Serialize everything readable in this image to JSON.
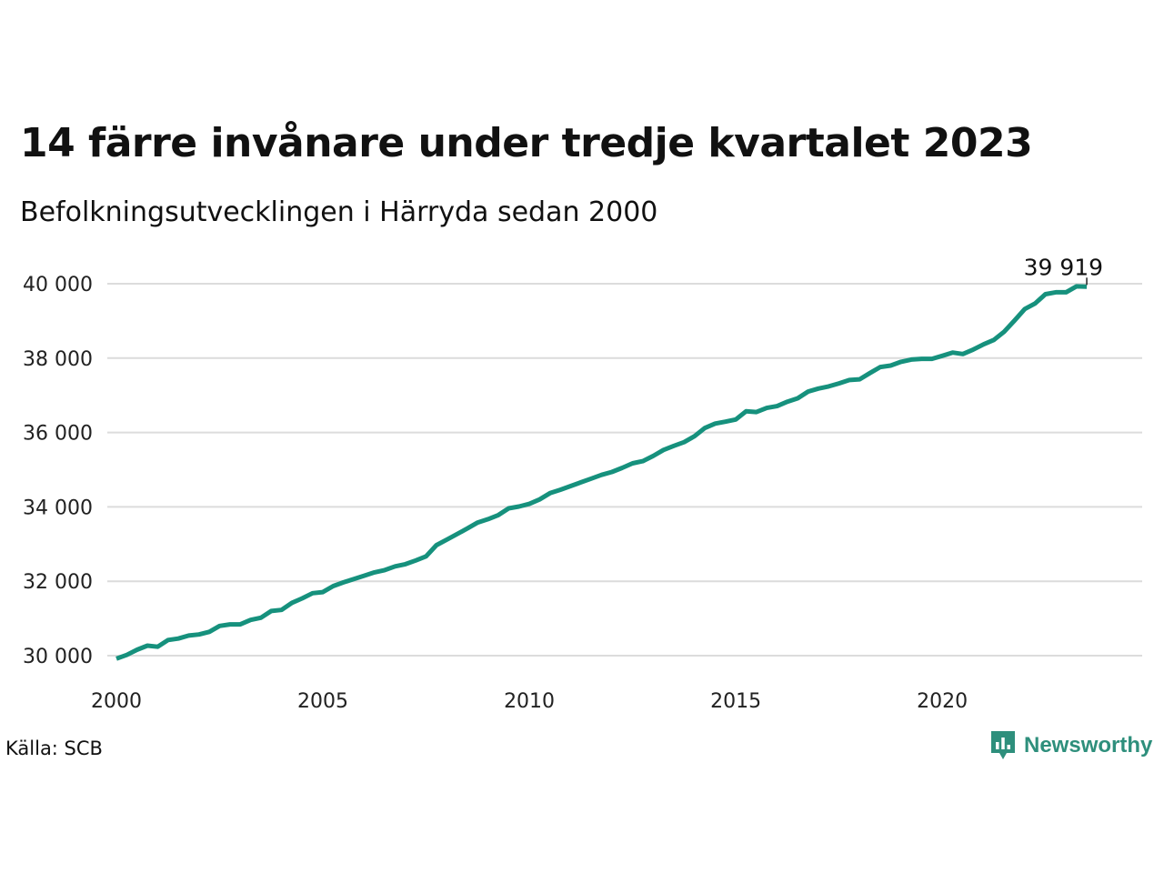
{
  "title": "14 färre invånare under tredje kvartalet 2023",
  "subtitle": "Befolkningsutvecklingen i Härryda sedan 2000",
  "source": "Källa: SCB",
  "brand": "Newsworthy",
  "colors": {
    "line": "#16917d",
    "grid": "#dcdcdc",
    "brand": "#2e8f7c"
  },
  "chart_data": {
    "type": "line",
    "title": "14 färre invånare under tredje kvartalet 2023",
    "subtitle": "Befolkningsutvecklingen i Härryda sedan 2000",
    "xlabel": "",
    "ylabel": "",
    "xlim": [
      2000,
      2024.6
    ],
    "ylim": [
      29500,
      40500
    ],
    "grid": true,
    "x_ticks": [
      2000,
      2005,
      2010,
      2015,
      2020
    ],
    "x_tick_labels": [
      "2000",
      "2005",
      "2010",
      "2015",
      "2020"
    ],
    "y_ticks": [
      30000,
      32000,
      34000,
      36000,
      38000,
      40000
    ],
    "y_tick_labels": [
      "30 000",
      "32 000",
      "34 000",
      "36 000",
      "38 000",
      "40 000"
    ],
    "end_label": "39 919",
    "series": [
      {
        "values": [
          [
            2000.0,
            29920
          ],
          [
            2000.25,
            30020
          ],
          [
            2000.5,
            30160
          ],
          [
            2000.75,
            30270
          ],
          [
            2001.0,
            30240
          ],
          [
            2001.25,
            30420
          ],
          [
            2001.5,
            30460
          ],
          [
            2001.75,
            30540
          ],
          [
            2002.0,
            30570
          ],
          [
            2002.25,
            30640
          ],
          [
            2002.5,
            30800
          ],
          [
            2002.75,
            30840
          ],
          [
            2003.0,
            30840
          ],
          [
            2003.25,
            30960
          ],
          [
            2003.5,
            31020
          ],
          [
            2003.75,
            31200
          ],
          [
            2004.0,
            31230
          ],
          [
            2004.25,
            31420
          ],
          [
            2004.5,
            31540
          ],
          [
            2004.75,
            31680
          ],
          [
            2005.0,
            31710
          ],
          [
            2005.25,
            31870
          ],
          [
            2005.5,
            31970
          ],
          [
            2005.75,
            32060
          ],
          [
            2006.0,
            32150
          ],
          [
            2006.25,
            32240
          ],
          [
            2006.5,
            32300
          ],
          [
            2006.75,
            32400
          ],
          [
            2007.0,
            32460
          ],
          [
            2007.25,
            32560
          ],
          [
            2007.5,
            32670
          ],
          [
            2007.75,
            32970
          ],
          [
            2008.0,
            33120
          ],
          [
            2008.25,
            33270
          ],
          [
            2008.5,
            33420
          ],
          [
            2008.75,
            33580
          ],
          [
            2009.0,
            33670
          ],
          [
            2009.25,
            33780
          ],
          [
            2009.5,
            33960
          ],
          [
            2009.75,
            34010
          ],
          [
            2010.0,
            34080
          ],
          [
            2010.25,
            34200
          ],
          [
            2010.5,
            34370
          ],
          [
            2010.75,
            34460
          ],
          [
            2011.0,
            34560
          ],
          [
            2011.25,
            34660
          ],
          [
            2011.5,
            34760
          ],
          [
            2011.75,
            34860
          ],
          [
            2012.0,
            34940
          ],
          [
            2012.25,
            35050
          ],
          [
            2012.5,
            35170
          ],
          [
            2012.75,
            35230
          ],
          [
            2013.0,
            35370
          ],
          [
            2013.25,
            35530
          ],
          [
            2013.5,
            35640
          ],
          [
            2013.75,
            35740
          ],
          [
            2014.0,
            35900
          ],
          [
            2014.25,
            36120
          ],
          [
            2014.5,
            36240
          ],
          [
            2014.75,
            36290
          ],
          [
            2015.0,
            36350
          ],
          [
            2015.25,
            36570
          ],
          [
            2015.5,
            36550
          ],
          [
            2015.75,
            36660
          ],
          [
            2016.0,
            36710
          ],
          [
            2016.25,
            36830
          ],
          [
            2016.5,
            36920
          ],
          [
            2016.75,
            37100
          ],
          [
            2017.0,
            37180
          ],
          [
            2017.25,
            37240
          ],
          [
            2017.5,
            37320
          ],
          [
            2017.75,
            37410
          ],
          [
            2018.0,
            37430
          ],
          [
            2018.25,
            37600
          ],
          [
            2018.5,
            37760
          ],
          [
            2018.75,
            37800
          ],
          [
            2019.0,
            37900
          ],
          [
            2019.25,
            37960
          ],
          [
            2019.5,
            37980
          ],
          [
            2019.75,
            37980
          ],
          [
            2020.0,
            38060
          ],
          [
            2020.25,
            38150
          ],
          [
            2020.5,
            38110
          ],
          [
            2020.75,
            38230
          ],
          [
            2021.0,
            38370
          ],
          [
            2021.25,
            38490
          ],
          [
            2021.5,
            38710
          ],
          [
            2021.75,
            39010
          ],
          [
            2022.0,
            39320
          ],
          [
            2022.25,
            39470
          ],
          [
            2022.5,
            39720
          ],
          [
            2022.75,
            39770
          ],
          [
            2023.0,
            39770
          ],
          [
            2023.25,
            39930
          ],
          [
            2023.5,
            39919
          ]
        ]
      }
    ]
  }
}
